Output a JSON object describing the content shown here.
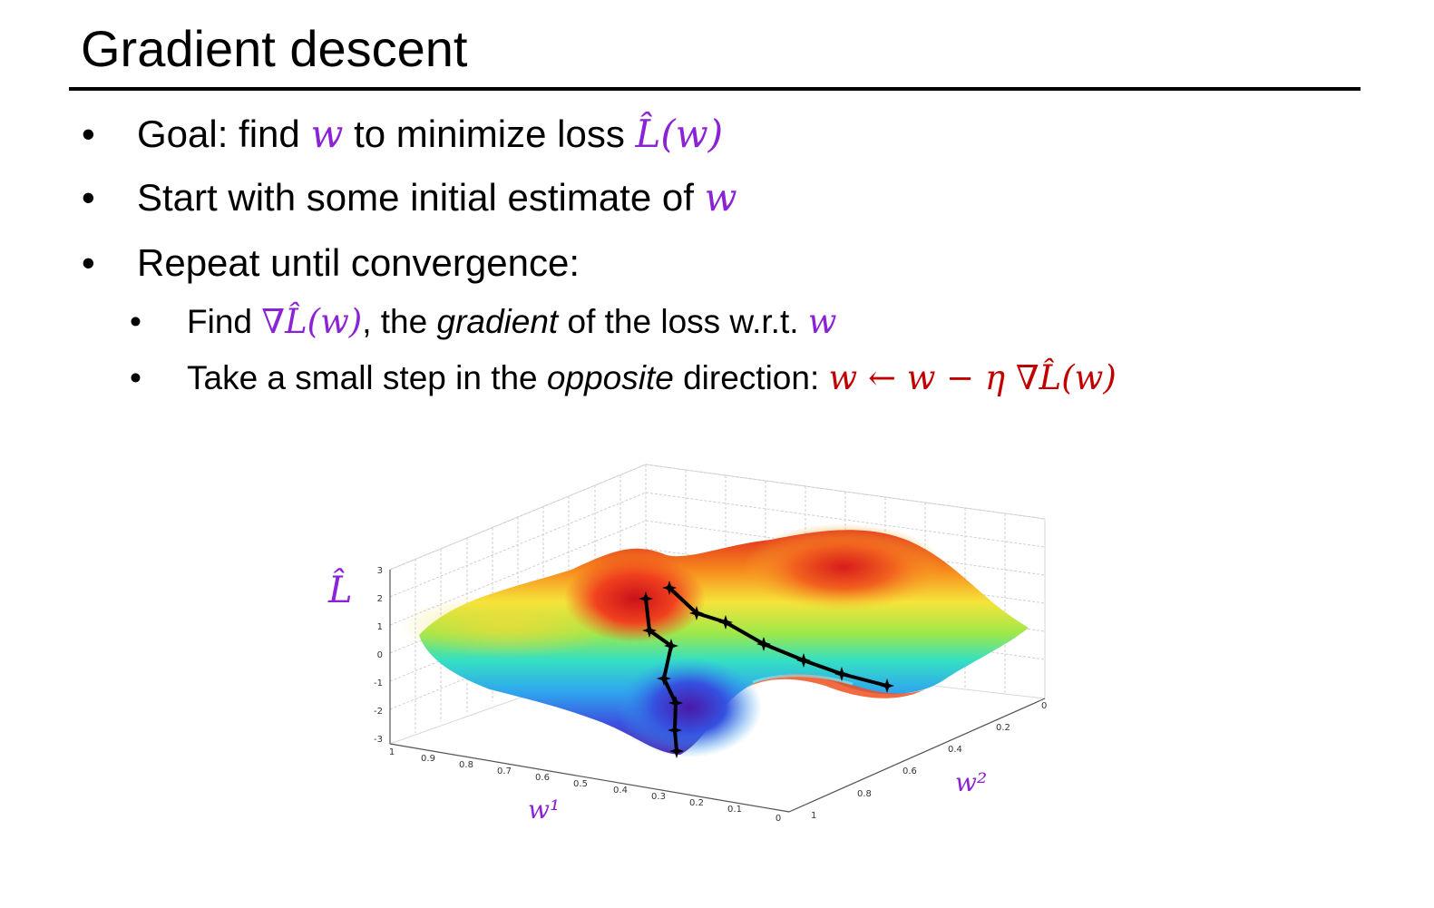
{
  "slide": {
    "title": "Gradient descent",
    "bullets": [
      {
        "pre": "Goal: find ",
        "var": "w",
        "mid": " to minimize loss ",
        "expr": "L̂(w)"
      },
      {
        "pre": "Start with some initial estimate of ",
        "var": "w"
      },
      {
        "text": "Repeat until convergence:"
      }
    ],
    "subbullets": [
      {
        "pre": "Find ",
        "expr": "∇L̂(w)",
        "mid": ", the ",
        "em": "gradient",
        "post": " of the loss w.r.t. ",
        "var": "w"
      },
      {
        "pre": "Take a small step in the ",
        "em": "opposite",
        "post": " direction: ",
        "update": "w ← w − η ∇L̂(w)"
      }
    ],
    "bullet_symbol": "•"
  },
  "figure": {
    "z_label": "L̂",
    "x_label": "w¹",
    "y_label": "w²",
    "z_ticks": [
      "3",
      "2",
      "1",
      "0",
      "-1",
      "-2",
      "-3"
    ],
    "x_ticks": [
      "1",
      "0.9",
      "0.8",
      "0.7",
      "0.6",
      "0.5",
      "0.4",
      "0.3",
      "0.2",
      "0.1",
      "0"
    ],
    "y_ticks": [
      "1",
      "0.8",
      "0.6",
      "0.4",
      "0.2",
      "0"
    ],
    "colors": {
      "purple": "#8b22d6",
      "red": "#c00000"
    }
  }
}
